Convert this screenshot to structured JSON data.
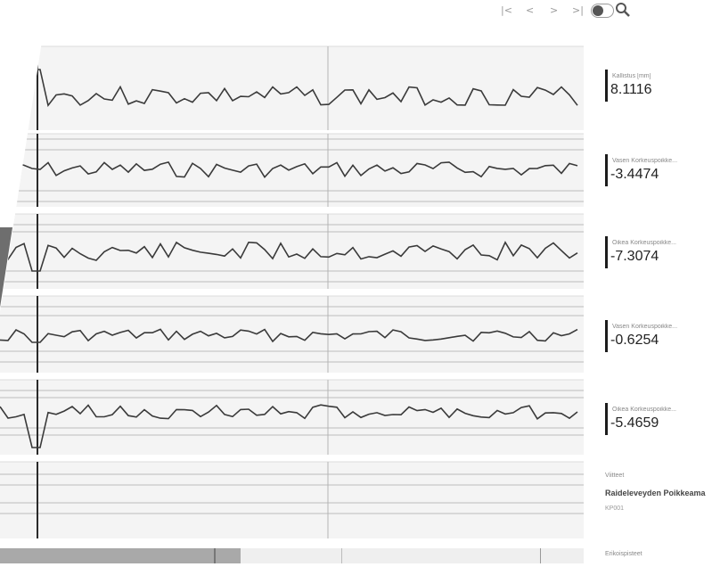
{
  "toolbar": {
    "first_label": "|<",
    "prev_label": "<",
    "next_label": ">",
    "last_label": ">|"
  },
  "panels": [
    {
      "label": "Kallistus [mm]",
      "value": "8.1116"
    },
    {
      "label": "Vasen Korkeuspoikke...",
      "value": "-3.4474"
    },
    {
      "label": "Oikea Korkeuspoikke...",
      "value": "-7.3074"
    },
    {
      "label": "Vasen Korkeuspoikke...",
      "value": "-0.6254"
    },
    {
      "label": "Oikea Korkeuspoikke...",
      "value": "-5.4659"
    }
  ],
  "markers": {
    "title": "Viitteet",
    "name": "Raideleveyden Poikkeama",
    "code": "KP001"
  },
  "bottom": {
    "label": "Erikoispisteet"
  },
  "colors": {
    "trace": "#3a3a3a",
    "cursor": "#2a2a2a",
    "gridline": "#bcbcbc",
    "background": "#f4f4f4"
  }
}
